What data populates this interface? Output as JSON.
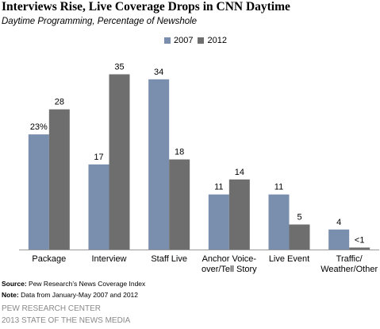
{
  "title": "Interviews Rise, Live Coverage Drops in CNN Daytime",
  "subtitle": "Daytime Programming, Percentage of Newshole",
  "colors": {
    "s2007": "#7a8ead",
    "s2012": "#6e6e6e",
    "axis": "#999999"
  },
  "chart_data": {
    "type": "bar",
    "categories": [
      [
        "Package"
      ],
      [
        "Interview"
      ],
      [
        "Staff Live"
      ],
      [
        "Anchor Voice-",
        "over/Tell Story"
      ],
      [
        "Live Event"
      ],
      [
        "Traffic/",
        "Weather/Other"
      ]
    ],
    "series": [
      {
        "name": "2007",
        "values": [
          23,
          17,
          34,
          11,
          11,
          4
        ],
        "labels": [
          "23%",
          "17",
          "34",
          "11",
          "11",
          "4"
        ]
      },
      {
        "name": "2012",
        "values": [
          28,
          35,
          18,
          14,
          5,
          0.4
        ],
        "labels": [
          "28",
          "35",
          "18",
          "14",
          "5",
          "<1"
        ]
      }
    ],
    "ylim": [
      0,
      40
    ],
    "grid": false,
    "legend": "top-right"
  },
  "footnotes": {
    "source_label": "Source:",
    "source_text": "Pew Research’s News Coverage Index",
    "note_label": "Note:",
    "note_text": "Data from January-May 2007 and 2012"
  },
  "org": {
    "line1": "Pew Research Center",
    "line2": "2013 State of the News Media"
  }
}
